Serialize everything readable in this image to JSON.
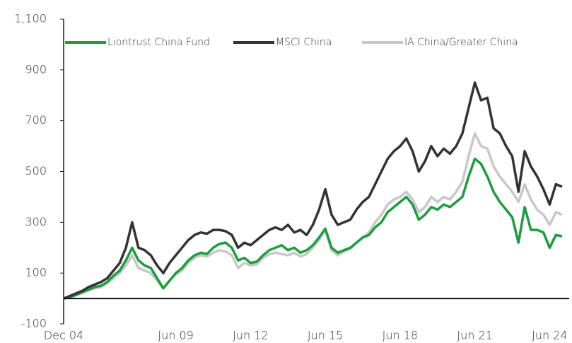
{
  "chart_data": {
    "type": "line",
    "categories": [
      "Dec 04",
      null,
      null,
      null,
      null,
      null,
      null,
      null,
      null,
      null,
      null,
      null,
      null,
      null,
      null,
      null,
      null,
      null,
      "Jun 09",
      null,
      null,
      null,
      null,
      null,
      null,
      null,
      null,
      null,
      null,
      null,
      "Jun 12",
      null,
      null,
      null,
      null,
      null,
      null,
      null,
      null,
      null,
      null,
      null,
      "Jun 15",
      null,
      null,
      null,
      null,
      null,
      null,
      null,
      null,
      null,
      null,
      null,
      "Jun 18",
      null,
      null,
      null,
      null,
      null,
      null,
      null,
      null,
      null,
      null,
      null,
      "Jun 21",
      null,
      null,
      null,
      null,
      null,
      null,
      null,
      null,
      null,
      null,
      null,
      "Jun 24",
      null,
      null
    ],
    "series": [
      {
        "name": "Liontrust China Fund",
        "color": "#1a9e3e",
        "values": [
          0,
          5,
          15,
          25,
          35,
          45,
          50,
          65,
          90,
          110,
          150,
          200,
          150,
          130,
          120,
          80,
          40,
          70,
          100,
          120,
          150,
          170,
          180,
          175,
          200,
          215,
          220,
          200,
          150,
          160,
          140,
          145,
          170,
          190,
          200,
          210,
          190,
          200,
          180,
          190,
          210,
          240,
          275,
          200,
          180,
          190,
          200,
          220,
          240,
          250,
          280,
          300,
          340,
          360,
          380,
          400,
          370,
          310,
          330,
          360,
          350,
          370,
          360,
          380,
          400,
          480,
          550,
          530,
          480,
          420,
          380,
          350,
          320,
          220,
          360,
          270,
          270,
          260,
          200,
          250,
          245
        ]
      },
      {
        "name": "MSCI China",
        "color": "#333333",
        "values": [
          0,
          10,
          20,
          30,
          45,
          55,
          65,
          80,
          110,
          140,
          200,
          300,
          200,
          190,
          170,
          130,
          100,
          140,
          170,
          200,
          230,
          250,
          260,
          255,
          270,
          270,
          265,
          250,
          200,
          220,
          210,
          230,
          250,
          270,
          280,
          270,
          290,
          260,
          270,
          250,
          290,
          350,
          430,
          330,
          290,
          300,
          310,
          350,
          380,
          400,
          450,
          500,
          550,
          580,
          600,
          630,
          580,
          500,
          540,
          600,
          560,
          590,
          570,
          600,
          650,
          750,
          850,
          780,
          790,
          670,
          650,
          600,
          560,
          420,
          580,
          520,
          480,
          430,
          370,
          450,
          440
        ]
      },
      {
        "name": "IA China/Greater China",
        "color": "#c8c8c8",
        "values": [
          0,
          5,
          12,
          22,
          32,
          40,
          45,
          60,
          80,
          100,
          130,
          170,
          120,
          110,
          100,
          70,
          40,
          70,
          95,
          110,
          140,
          160,
          170,
          165,
          180,
          190,
          185,
          170,
          120,
          140,
          130,
          135,
          160,
          175,
          180,
          175,
          170,
          180,
          165,
          175,
          200,
          230,
          270,
          190,
          170,
          185,
          195,
          220,
          240,
          260,
          300,
          330,
          370,
          390,
          400,
          420,
          390,
          340,
          360,
          400,
          380,
          400,
          390,
          420,
          460,
          560,
          650,
          600,
          590,
          520,
          480,
          450,
          420,
          380,
          450,
          390,
          350,
          330,
          290,
          340,
          330
        ]
      }
    ],
    "ylim": [
      -100,
      1100
    ],
    "yticks": [
      -100,
      100,
      300,
      500,
      700,
      900,
      {
        "value": 1100,
        "label": "1,100"
      }
    ],
    "legend": "top"
  }
}
